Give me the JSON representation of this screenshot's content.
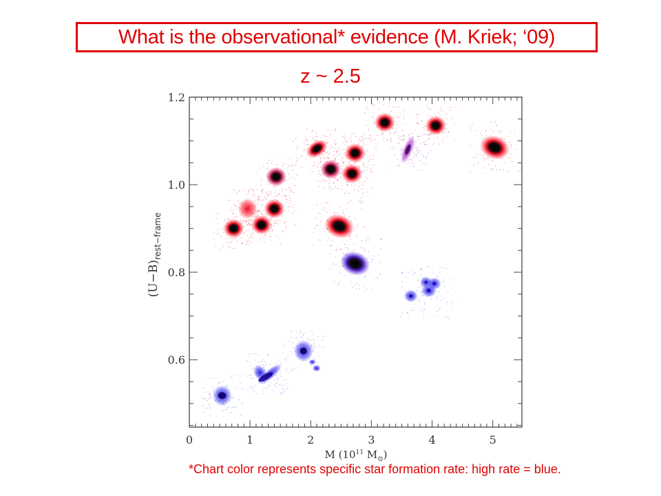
{
  "slide": {
    "title": "What is the observational*  evidence  (M. Kriek; ‘09)",
    "subtitle": "z ~ 2.5",
    "footnote": "*Chart color represents specific star formation rate: high rate = blue."
  },
  "colors": {
    "accent": "#e00000",
    "red_galaxy": "#e8001a",
    "purple_galaxy": "#8a10b0",
    "blue_galaxy": "#2a10e0",
    "axis": "#444444"
  },
  "chart_data": {
    "type": "scatter",
    "title": "z ~ 2.5",
    "xlabel": "M (10¹¹ M⊙)",
    "xlabel_parts": {
      "main": "M (10",
      "sup": "11",
      "unit": " M",
      "sun": "⊙",
      "close": ")"
    },
    "ylabel": "(U−B)rest−frame",
    "ylabel_parts": {
      "main": "(U−B)",
      "sub": "rest−frame"
    },
    "xlim": [
      0,
      5.48
    ],
    "ylim": [
      0.446,
      1.2
    ],
    "x_ticks": [
      0,
      1,
      2,
      3,
      4,
      5
    ],
    "x_tick_labels": [
      "0",
      "1",
      "2",
      "3",
      "4",
      "5"
    ],
    "y_ticks": [
      0.6,
      0.8,
      1.0,
      1.2
    ],
    "y_tick_labels": [
      "0.6",
      "0.8",
      "1.0",
      "1.2"
    ],
    "x_minor_step": 0.1,
    "y_minor_step": 0.05,
    "grid": false,
    "legend": "none",
    "color_meaning": "specific star formation rate: red = low, blue = high",
    "points": [
      {
        "x": 0.73,
        "y": 0.9,
        "color": "red",
        "shape": "compact"
      },
      {
        "x": 0.96,
        "y": 0.945,
        "color": "red",
        "shape": "diffuse"
      },
      {
        "x": 1.19,
        "y": 0.908,
        "color": "red",
        "shape": "compact"
      },
      {
        "x": 1.4,
        "y": 0.945,
        "color": "red",
        "shape": "compact"
      },
      {
        "x": 1.43,
        "y": 1.018,
        "color": "redpurple",
        "shape": "compact"
      },
      {
        "x": 2.1,
        "y": 1.082,
        "color": "red",
        "shape": "elongated"
      },
      {
        "x": 2.33,
        "y": 1.035,
        "color": "redpurple",
        "shape": "compact"
      },
      {
        "x": 2.73,
        "y": 1.072,
        "color": "red",
        "shape": "compact"
      },
      {
        "x": 2.68,
        "y": 1.025,
        "color": "red",
        "shape": "compact"
      },
      {
        "x": 2.47,
        "y": 0.905,
        "color": "red",
        "shape": "large"
      },
      {
        "x": 3.22,
        "y": 1.142,
        "color": "red",
        "shape": "compact"
      },
      {
        "x": 3.6,
        "y": 1.08,
        "color": "purple",
        "shape": "elongated"
      },
      {
        "x": 4.06,
        "y": 1.135,
        "color": "red",
        "shape": "compact"
      },
      {
        "x": 5.03,
        "y": 1.085,
        "color": "red",
        "shape": "large"
      },
      {
        "x": 2.73,
        "y": 0.82,
        "color": "bluepurple",
        "shape": "large"
      },
      {
        "x": 3.9,
        "y": 0.755,
        "color": "blue",
        "shape": "clumpy"
      },
      {
        "x": 0.54,
        "y": 0.518,
        "color": "blue",
        "shape": "diffuse"
      },
      {
        "x": 1.28,
        "y": 0.57,
        "color": "blue",
        "shape": "vshape"
      },
      {
        "x": 1.88,
        "y": 0.62,
        "color": "blue",
        "shape": "clumpy2"
      }
    ]
  }
}
